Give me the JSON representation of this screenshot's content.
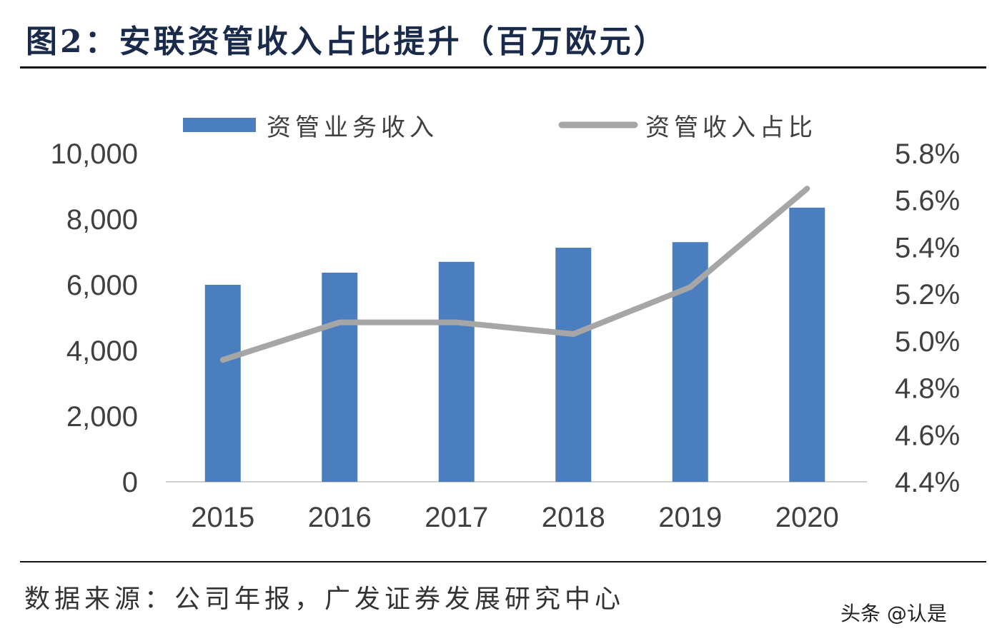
{
  "title": "图2：安联资管收入占比提升（百万欧元）",
  "source": "数据来源：公司年报，广发证券发展研究中心",
  "watermark": "头条 @认是",
  "chart_data": {
    "type": "bar+line",
    "categories": [
      "2015",
      "2016",
      "2017",
      "2018",
      "2019",
      "2020"
    ],
    "series": [
      {
        "name": "资管业务收入",
        "type": "bar",
        "axis": "left",
        "color": "#4a7ebf",
        "values": [
          6000,
          6370,
          6700,
          7130,
          7300,
          8350
        ]
      },
      {
        "name": "资管收入占比",
        "type": "line",
        "axis": "right",
        "color": "#a6a6a6",
        "values": [
          4.92,
          5.08,
          5.08,
          5.03,
          5.23,
          5.65
        ]
      }
    ],
    "left_axis": {
      "ylim": [
        0,
        10000
      ],
      "ticks": [
        "0",
        "2,000",
        "4,000",
        "6,000",
        "8,000",
        "10,000"
      ]
    },
    "right_axis": {
      "ylim": [
        4.4,
        5.8
      ],
      "ticks": [
        "4.4%",
        "4.6%",
        "4.8%",
        "5.0%",
        "5.2%",
        "5.4%",
        "5.6%",
        "5.8%"
      ]
    },
    "legend": "top",
    "grid": false
  }
}
